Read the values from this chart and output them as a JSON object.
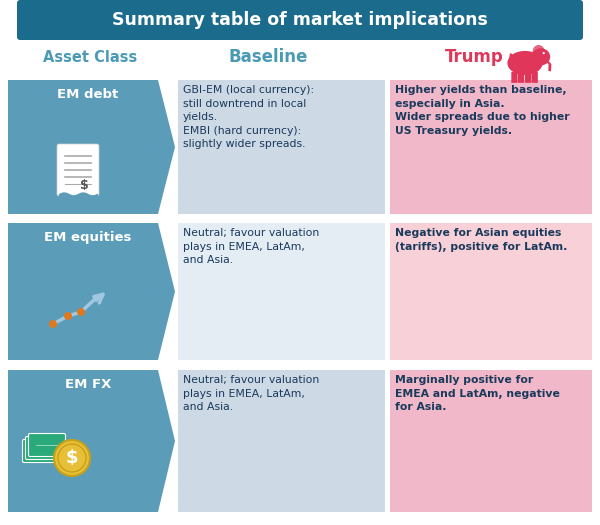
{
  "title": "Summary table of market implications",
  "title_bg": "#1a6b8c",
  "title_color": "#ffffff",
  "col_headers": [
    "Asset Class",
    "Baseline",
    "Trump"
  ],
  "header_colors": [
    "#4a9ab5",
    "#4a9ab5",
    "#e0365a"
  ],
  "rows": [
    {
      "label": "EM debt",
      "baseline_text": "GBI-EM (local currency):\nstill downtrend in local\nyields.\nEMBI (hard currency):\nslightly wider spreads.",
      "baseline_bg": "#cdd9e5",
      "trump_text": "Higher yields than baseline,\nespecially in Asia.\nWider spreads due to higher\nUS Treasury yields.",
      "trump_bg": "#f0b8c8"
    },
    {
      "label": "EM equities",
      "baseline_text": "Neutral; favour valuation\nplays in EMEA, LatAm,\nand Asia.",
      "baseline_bg": "#e4ecf4",
      "trump_text": "Negative for Asian equities\n(tariffs), positive for LatAm.",
      "trump_bg": "#f8d0d8"
    },
    {
      "label": "EM FX",
      "baseline_text": "Neutral; favour valuation\nplays in EMEA, LatAm,\nand Asia.",
      "baseline_bg": "#cdd9e5",
      "trump_text": "Marginally positive for\nEMEA and LatAm, negative\nfor Asia.",
      "trump_bg": "#f0b8c8"
    }
  ],
  "label_bg": "#5b9db8",
  "label_text_color": "#ffffff",
  "baseline_text_color": "#1a3a5c",
  "trump_text_color": "#1a3a5c",
  "bg_color": "#ffffff",
  "elephant_color": "#e0365a",
  "border_color": "#cccccc"
}
